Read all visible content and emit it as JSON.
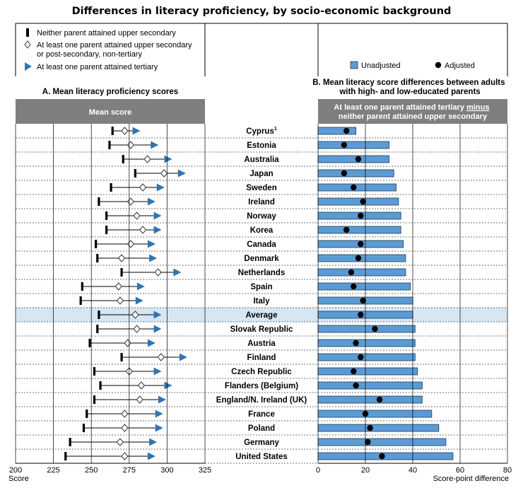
{
  "title": "Differences in literacy proficiency, by socio-economic background",
  "legend_a": {
    "item1": "Neither parent attained upper secondary",
    "item2_line1": "At least one parent attained upper secondary",
    "item2_line2": "or post-secondary, non-tertiary",
    "item3": "At least one parent attained tertiary"
  },
  "legend_b": {
    "unadjusted": "Unadjusted",
    "adjusted": "Adjusted"
  },
  "colors": {
    "header_bg": "#7f7f7f",
    "bar_fill": "#5b9bd5",
    "arrow_fill": "#2e75b6",
    "average_row": "#d6e6f2"
  },
  "chart_data": [
    {
      "type": "scatter",
      "title": "A. Mean literacy proficiency scores",
      "header": "Mean score",
      "xlabel": "Score",
      "xlim": [
        200,
        325
      ],
      "xticks": [
        200,
        225,
        250,
        275,
        300,
        325
      ],
      "categories": [
        "Cyprus¹",
        "Estonia",
        "Australia",
        "Japan",
        "Sweden",
        "Ireland",
        "Norway",
        "Korea",
        "Canada",
        "Denmark",
        "Netherlands",
        "Spain",
        "Italy",
        "Average",
        "Slovak Republic",
        "Austria",
        "Finland",
        "Czech Republic",
        "Flanders (Belgium)",
        "England/N. Ireland (UK)",
        "France",
        "Poland",
        "Germany",
        "United States"
      ],
      "highlight": "Average",
      "series": [
        {
          "name": "Neither parent attained upper secondary",
          "marker": "bar",
          "values": [
            264,
            262,
            271,
            279,
            263,
            255,
            260,
            260,
            253,
            254,
            270,
            244,
            243,
            255,
            254,
            249,
            270,
            252,
            256,
            252,
            247,
            245,
            236,
            233
          ]
        },
        {
          "name": "At least one parent attained upper secondary or post-secondary, non-tertiary",
          "marker": "diamond",
          "values": [
            272,
            276,
            287,
            298,
            284,
            276,
            280,
            284,
            276,
            270,
            294,
            268,
            269,
            279,
            280,
            274,
            296,
            275,
            283,
            282,
            272,
            272,
            269,
            272
          ]
        },
        {
          "name": "At least one parent attained tertiary",
          "marker": "arrow",
          "values": [
            280,
            292,
            301,
            310,
            296,
            290,
            294,
            294,
            290,
            291,
            307,
            283,
            282,
            294,
            294,
            290,
            311,
            294,
            301,
            297,
            295,
            295,
            291,
            290
          ]
        }
      ]
    },
    {
      "type": "bar",
      "title": "B. Mean literacy score differences between adults with high- and low-educated parents",
      "header_line1": "At least one parent attained tertiary ",
      "header_minus": "minus",
      "header_line2": "neither parent attained upper  secondary",
      "xlabel": "Score-point difference",
      "xlim": [
        0,
        80
      ],
      "xticks": [
        0,
        20,
        40,
        60,
        80
      ],
      "categories": [
        "Cyprus¹",
        "Estonia",
        "Australia",
        "Japan",
        "Sweden",
        "Ireland",
        "Norway",
        "Korea",
        "Canada",
        "Denmark",
        "Netherlands",
        "Spain",
        "Italy",
        "Average",
        "Slovak Republic",
        "Austria",
        "Finland",
        "Czech Republic",
        "Flanders (Belgium)",
        "England/N. Ireland (UK)",
        "France",
        "Poland",
        "Germany",
        "United States"
      ],
      "series": [
        {
          "name": "Unadjusted",
          "values": [
            16,
            30,
            30,
            32,
            33,
            34,
            35,
            35,
            36,
            37,
            37,
            39,
            40,
            40,
            41,
            41,
            41,
            42,
            44,
            44,
            48,
            51,
            54,
            57
          ]
        },
        {
          "name": "Adjusted",
          "values": [
            12,
            11,
            17,
            11,
            15,
            19,
            18,
            12,
            18,
            17,
            14,
            15,
            19,
            18,
            24,
            16,
            18,
            15,
            16,
            26,
            20,
            22,
            21,
            27
          ]
        }
      ]
    }
  ]
}
